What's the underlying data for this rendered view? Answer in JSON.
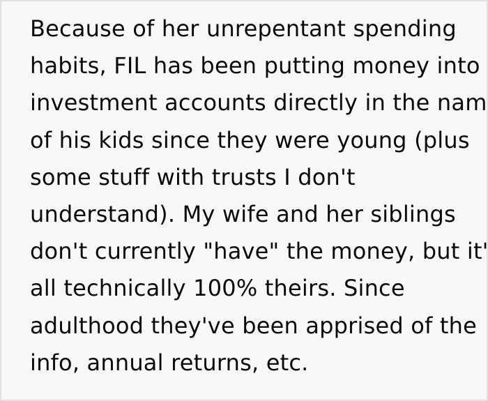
{
  "post": {
    "lines": [
      "Because of her unrepentant spending",
      "habits, FIL has been putting money into",
      "investment accounts directly in the name",
      "of his kids since they were young (plus",
      "some stuff with trusts I don't",
      "understand). My wife and her siblings",
      "don't currently \"have\" the money, but it's",
      "all technically 100% theirs. Since",
      "adulthood they've been apprised of the",
      "info, annual returns, etc."
    ]
  },
  "colors": {
    "background": "#f8f8f8",
    "border": "#e0e0e0",
    "text": "#0a0a0a"
  }
}
